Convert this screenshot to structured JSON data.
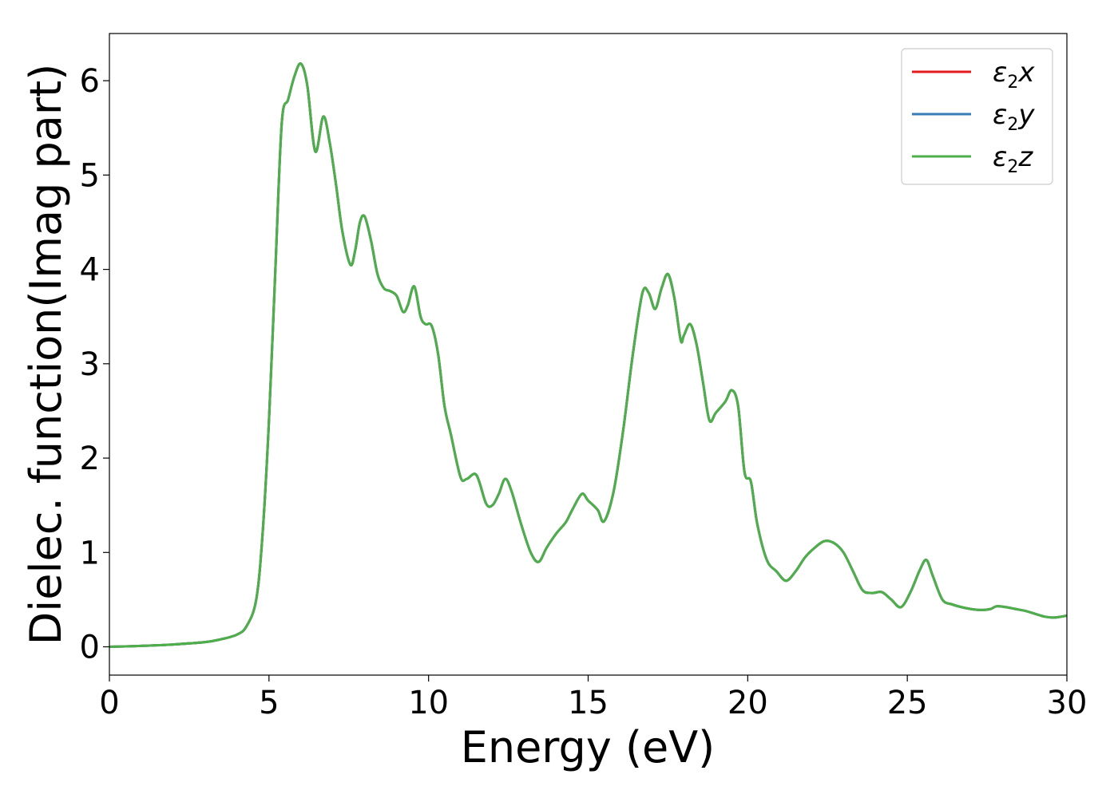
{
  "chart_data": {
    "type": "line",
    "title": "",
    "xlabel": "Energy (eV)",
    "ylabel": "Dielec. function(Imag part)",
    "xlim": [
      0,
      30
    ],
    "ylim": [
      -0.3,
      6.5
    ],
    "xticks": [
      0,
      5,
      10,
      15,
      20,
      25,
      30
    ],
    "yticks": [
      0,
      1,
      2,
      3,
      4,
      5,
      6
    ],
    "grid": false,
    "legend_position": "top-right",
    "x": [
      0,
      1,
      2,
      3,
      3.5,
      4,
      4.3,
      4.6,
      4.8,
      5.0,
      5.2,
      5.4,
      5.6,
      5.8,
      6.0,
      6.2,
      6.45,
      6.7,
      6.9,
      7.1,
      7.3,
      7.55,
      7.7,
      7.85,
      8.0,
      8.2,
      8.4,
      8.6,
      8.8,
      9.0,
      9.2,
      9.35,
      9.55,
      9.75,
      9.9,
      10.1,
      10.3,
      10.5,
      10.7,
      11.0,
      11.2,
      11.5,
      11.8,
      12.0,
      12.2,
      12.4,
      12.6,
      12.9,
      13.2,
      13.45,
      13.7,
      14.0,
      14.3,
      14.5,
      14.8,
      15.0,
      15.3,
      15.5,
      15.8,
      16.1,
      16.4,
      16.7,
      16.9,
      17.1,
      17.3,
      17.5,
      17.7,
      17.9,
      18.0,
      18.2,
      18.4,
      18.6,
      18.8,
      19.0,
      19.3,
      19.5,
      19.7,
      19.9,
      20.1,
      20.3,
      20.6,
      20.9,
      21.2,
      21.5,
      21.8,
      22.1,
      22.4,
      22.7,
      23.0,
      23.3,
      23.6,
      23.9,
      24.2,
      24.5,
      24.8,
      25.1,
      25.4,
      25.6,
      25.8,
      26.1,
      26.4,
      26.7,
      27.0,
      27.3,
      27.6,
      27.8,
      28.1,
      28.4,
      28.7,
      29.0,
      29.3,
      29.6,
      30.0
    ],
    "series": [
      {
        "name": "ε2x",
        "color": "#e41a1c",
        "y": [
          0.0,
          0.01,
          0.025,
          0.05,
          0.08,
          0.13,
          0.22,
          0.5,
          1.2,
          2.4,
          4.0,
          5.55,
          5.8,
          6.05,
          6.18,
          5.95,
          5.25,
          5.62,
          5.35,
          4.9,
          4.4,
          4.05,
          4.2,
          4.5,
          4.56,
          4.3,
          3.95,
          3.8,
          3.77,
          3.72,
          3.55,
          3.62,
          3.82,
          3.5,
          3.42,
          3.4,
          3.1,
          2.55,
          2.25,
          1.8,
          1.78,
          1.82,
          1.52,
          1.5,
          1.62,
          1.78,
          1.65,
          1.3,
          1.0,
          0.9,
          1.05,
          1.2,
          1.32,
          1.45,
          1.62,
          1.55,
          1.45,
          1.33,
          1.65,
          2.3,
          3.1,
          3.75,
          3.75,
          3.58,
          3.8,
          3.95,
          3.7,
          3.25,
          3.3,
          3.42,
          3.2,
          2.8,
          2.4,
          2.48,
          2.6,
          2.72,
          2.55,
          1.85,
          1.75,
          1.3,
          0.92,
          0.8,
          0.7,
          0.8,
          0.95,
          1.05,
          1.12,
          1.1,
          1.0,
          0.8,
          0.6,
          0.57,
          0.58,
          0.5,
          0.42,
          0.58,
          0.82,
          0.92,
          0.75,
          0.5,
          0.45,
          0.42,
          0.4,
          0.39,
          0.4,
          0.43,
          0.42,
          0.4,
          0.38,
          0.35,
          0.32,
          0.31,
          0.33
        ]
      },
      {
        "name": "ε2y",
        "color": "#377eb8",
        "y": [
          0.0,
          0.01,
          0.025,
          0.05,
          0.08,
          0.13,
          0.22,
          0.5,
          1.2,
          2.4,
          4.0,
          5.55,
          5.8,
          6.05,
          6.18,
          5.95,
          5.25,
          5.62,
          5.35,
          4.9,
          4.4,
          4.05,
          4.2,
          4.5,
          4.56,
          4.3,
          3.95,
          3.8,
          3.77,
          3.72,
          3.55,
          3.62,
          3.82,
          3.5,
          3.42,
          3.4,
          3.1,
          2.55,
          2.25,
          1.8,
          1.78,
          1.82,
          1.52,
          1.5,
          1.62,
          1.78,
          1.65,
          1.3,
          1.0,
          0.9,
          1.05,
          1.2,
          1.32,
          1.45,
          1.62,
          1.55,
          1.45,
          1.33,
          1.65,
          2.3,
          3.1,
          3.75,
          3.75,
          3.58,
          3.8,
          3.95,
          3.7,
          3.25,
          3.3,
          3.42,
          3.2,
          2.8,
          2.4,
          2.48,
          2.6,
          2.72,
          2.55,
          1.85,
          1.75,
          1.3,
          0.92,
          0.8,
          0.7,
          0.8,
          0.95,
          1.05,
          1.12,
          1.1,
          1.0,
          0.8,
          0.6,
          0.57,
          0.58,
          0.5,
          0.42,
          0.58,
          0.82,
          0.92,
          0.75,
          0.5,
          0.45,
          0.42,
          0.4,
          0.39,
          0.4,
          0.43,
          0.42,
          0.4,
          0.38,
          0.35,
          0.32,
          0.31,
          0.33
        ]
      },
      {
        "name": "ε2z",
        "color": "#4daf4a",
        "y": [
          0.0,
          0.01,
          0.025,
          0.05,
          0.08,
          0.13,
          0.22,
          0.5,
          1.2,
          2.4,
          4.0,
          5.55,
          5.8,
          6.05,
          6.18,
          5.95,
          5.25,
          5.62,
          5.35,
          4.9,
          4.4,
          4.05,
          4.2,
          4.5,
          4.56,
          4.3,
          3.95,
          3.8,
          3.77,
          3.72,
          3.55,
          3.62,
          3.82,
          3.5,
          3.42,
          3.4,
          3.1,
          2.55,
          2.25,
          1.8,
          1.78,
          1.82,
          1.52,
          1.5,
          1.62,
          1.78,
          1.65,
          1.3,
          1.0,
          0.9,
          1.05,
          1.2,
          1.32,
          1.45,
          1.62,
          1.55,
          1.45,
          1.33,
          1.65,
          2.3,
          3.1,
          3.75,
          3.75,
          3.58,
          3.8,
          3.95,
          3.7,
          3.25,
          3.3,
          3.42,
          3.2,
          2.8,
          2.4,
          2.48,
          2.6,
          2.72,
          2.55,
          1.85,
          1.75,
          1.3,
          0.92,
          0.8,
          0.7,
          0.8,
          0.95,
          1.05,
          1.12,
          1.1,
          1.0,
          0.8,
          0.6,
          0.57,
          0.58,
          0.5,
          0.42,
          0.58,
          0.82,
          0.92,
          0.75,
          0.5,
          0.45,
          0.42,
          0.4,
          0.39,
          0.4,
          0.43,
          0.42,
          0.4,
          0.38,
          0.35,
          0.32,
          0.31,
          0.33
        ]
      }
    ]
  }
}
